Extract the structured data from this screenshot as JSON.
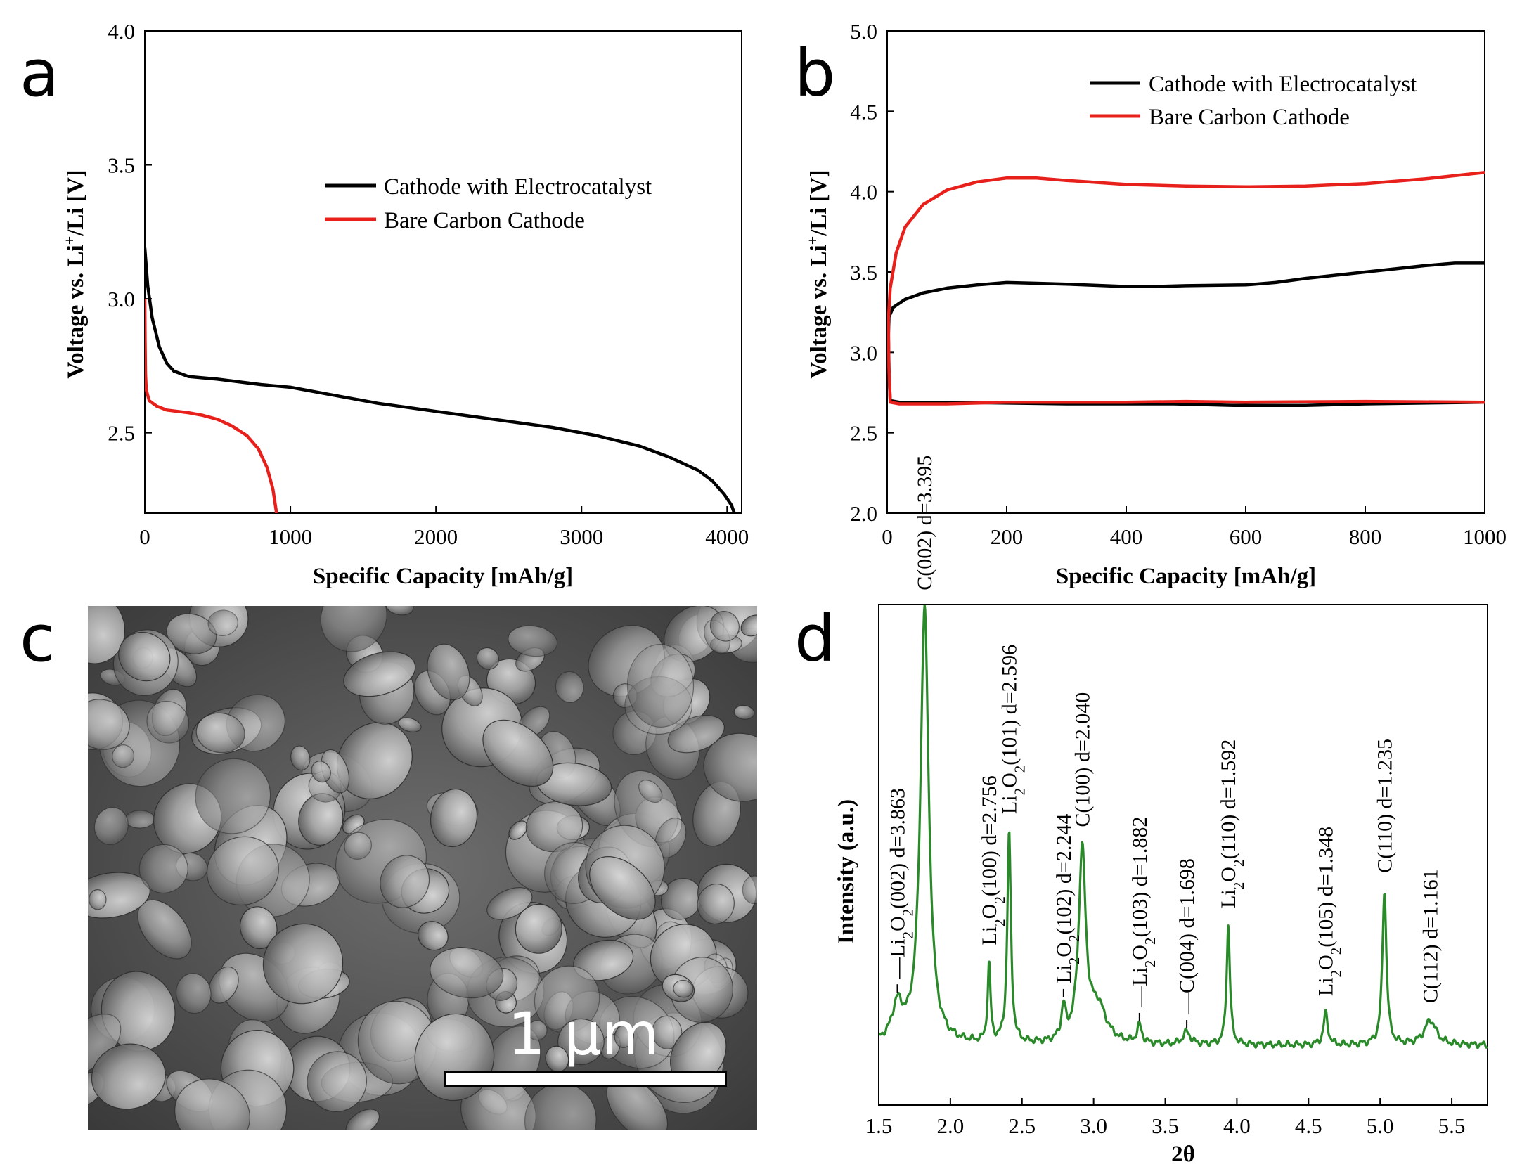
{
  "panels": {
    "a": {
      "letter": "a",
      "chart_data": {
        "type": "line",
        "xlabel": "Specific Capacity [mAh/g]",
        "ylabel_main": "Voltage vs. Li",
        "ylabel_sup": "+",
        "ylabel_rest": "/Li [V]",
        "xlim": [
          0,
          4100
        ],
        "ylim": [
          2.2,
          4.0
        ],
        "xticks": [
          0,
          1000,
          2000,
          3000,
          4000
        ],
        "yticks": [
          2.5,
          3.0,
          3.5,
          4.0
        ],
        "ytick_labels": [
          "2.5",
          "3.0",
          "3.5",
          "4.0"
        ],
        "legend_position": "center-right",
        "series": [
          {
            "name": "Cathode with Electrocatalyst",
            "color": "#000000",
            "points": [
              [
                0,
                3.19
              ],
              [
                20,
                3.05
              ],
              [
                50,
                2.93
              ],
              [
                100,
                2.82
              ],
              [
                150,
                2.76
              ],
              [
                200,
                2.73
              ],
              [
                300,
                2.71
              ],
              [
                500,
                2.7
              ],
              [
                800,
                2.68
              ],
              [
                1000,
                2.67
              ],
              [
                1300,
                2.64
              ],
              [
                1600,
                2.61
              ],
              [
                2000,
                2.58
              ],
              [
                2400,
                2.55
              ],
              [
                2800,
                2.52
              ],
              [
                3100,
                2.49
              ],
              [
                3400,
                2.45
              ],
              [
                3600,
                2.41
              ],
              [
                3800,
                2.36
              ],
              [
                3900,
                2.32
              ],
              [
                3980,
                2.27
              ],
              [
                4030,
                2.23
              ],
              [
                4050,
                2.2
              ]
            ]
          },
          {
            "name": "Bare Carbon Cathode",
            "color": "#e8201c",
            "points": [
              [
                0,
                3.0
              ],
              [
                2,
                2.85
              ],
              [
                5,
                2.72
              ],
              [
                10,
                2.66
              ],
              [
                30,
                2.62
              ],
              [
                80,
                2.6
              ],
              [
                150,
                2.585
              ],
              [
                300,
                2.575
              ],
              [
                400,
                2.565
              ],
              [
                500,
                2.55
              ],
              [
                600,
                2.525
              ],
              [
                700,
                2.49
              ],
              [
                780,
                2.44
              ],
              [
                840,
                2.37
              ],
              [
                880,
                2.29
              ],
              [
                905,
                2.2
              ]
            ]
          }
        ]
      }
    },
    "b": {
      "letter": "b",
      "chart_data": {
        "type": "line",
        "xlabel": "Specific Capacity [mAh/g]",
        "ylabel_main": "Voltage vs. Li",
        "ylabel_sup": "+",
        "ylabel_rest": "/Li [V]",
        "xlim": [
          0,
          1000
        ],
        "ylim": [
          2.0,
          5.0
        ],
        "xticks": [
          0,
          200,
          400,
          600,
          800,
          1000
        ],
        "yticks": [
          2.0,
          2.5,
          3.0,
          3.5,
          4.0,
          4.5,
          5.0
        ],
        "ytick_labels": [
          "2.0",
          "2.5",
          "3.0",
          "3.5",
          "4.0",
          "4.5",
          "5.0"
        ],
        "legend_position": "top-right",
        "series": [
          {
            "name": "Cathode with Electrocatalyst",
            "color": "#000000",
            "points": [
              [
                1000,
                2.69
              ],
              [
                800,
                2.68
              ],
              [
                700,
                2.67
              ],
              [
                580,
                2.67
              ],
              [
                480,
                2.68
              ],
              [
                300,
                2.68
              ],
              [
                100,
                2.69
              ],
              [
                20,
                2.69
              ],
              [
                5,
                2.7
              ],
              [
                3,
                2.9
              ],
              [
                2,
                3.1
              ],
              [
                3,
                3.22
              ],
              [
                10,
                3.28
              ],
              [
                30,
                3.33
              ],
              [
                60,
                3.37
              ],
              [
                100,
                3.4
              ],
              [
                150,
                3.42
              ],
              [
                200,
                3.435
              ],
              [
                250,
                3.43
              ],
              [
                300,
                3.425
              ],
              [
                400,
                3.41
              ],
              [
                450,
                3.41
              ],
              [
                500,
                3.415
              ],
              [
                600,
                3.42
              ],
              [
                650,
                3.435
              ],
              [
                700,
                3.46
              ],
              [
                800,
                3.5
              ],
              [
                900,
                3.54
              ],
              [
                950,
                3.555
              ],
              [
                1000,
                3.555
              ]
            ]
          },
          {
            "name": "Bare Carbon Cathode",
            "color": "#e8201c",
            "points": [
              [
                1000,
                2.69
              ],
              [
                800,
                2.695
              ],
              [
                600,
                2.69
              ],
              [
                500,
                2.695
              ],
              [
                400,
                2.69
              ],
              [
                200,
                2.69
              ],
              [
                100,
                2.68
              ],
              [
                20,
                2.68
              ],
              [
                5,
                2.69
              ],
              [
                3,
                2.9
              ],
              [
                2,
                3.2
              ],
              [
                5,
                3.4
              ],
              [
                15,
                3.62
              ],
              [
                30,
                3.78
              ],
              [
                60,
                3.92
              ],
              [
                100,
                4.01
              ],
              [
                150,
                4.06
              ],
              [
                200,
                4.085
              ],
              [
                250,
                4.085
              ],
              [
                300,
                4.07
              ],
              [
                400,
                4.045
              ],
              [
                500,
                4.035
              ],
              [
                600,
                4.03
              ],
              [
                700,
                4.035
              ],
              [
                800,
                4.05
              ],
              [
                900,
                4.08
              ],
              [
                1000,
                4.12
              ]
            ]
          }
        ]
      }
    },
    "c": {
      "letter": "c",
      "scale_label": "1 μm",
      "image": "SEM micrograph"
    },
    "d": {
      "letter": "d",
      "chart_data": {
        "type": "line",
        "xlabel": "2θ",
        "ylabel": "Intensity (a.u.)",
        "xlim": [
          1.5,
          5.75
        ],
        "xticks": [
          1.5,
          2.0,
          2.5,
          3.0,
          3.5,
          4.0,
          4.5,
          5.0,
          5.5
        ],
        "xtick_labels": [
          "1.5",
          "2.0",
          "2.5",
          "3.0",
          "3.5",
          "4.0",
          "4.5",
          "5.0",
          "5.5"
        ],
        "ylim": [
          0,
          1.0
        ],
        "y_ticks_shown": false,
        "series": [
          {
            "name": "",
            "color": "#2a8a2a",
            "baseline": 0.045,
            "peaks": [
              {
                "x": 1.63,
                "h": 0.05,
                "w": 0.045
              },
              {
                "x": 1.82,
                "h": 0.62,
                "w": 0.035
              },
              {
                "x": 2.27,
                "h": 0.11,
                "w": 0.012
              },
              {
                "x": 2.41,
                "h": 0.3,
                "w": 0.015
              },
              {
                "x": 2.79,
                "h": 0.045,
                "w": 0.018
              },
              {
                "x": 2.92,
                "h": 0.27,
                "w": 0.03
              },
              {
                "x": 3.03,
                "h": 0.05,
                "w": 0.07
              },
              {
                "x": 3.32,
                "h": 0.025,
                "w": 0.02
              },
              {
                "x": 3.65,
                "h": 0.018,
                "w": 0.03
              },
              {
                "x": 3.94,
                "h": 0.17,
                "w": 0.014
              },
              {
                "x": 4.62,
                "h": 0.045,
                "w": 0.018
              },
              {
                "x": 5.03,
                "h": 0.22,
                "w": 0.017
              },
              {
                "x": 5.35,
                "h": 0.035,
                "w": 0.05
              }
            ]
          }
        ],
        "peak_labels": [
          {
            "x": 1.63,
            "top": "—Li",
            "sub": "2",
            "mid": "O",
            "sub2": "2",
            "rest": "(002) d=3.863",
            "arrow": true
          },
          {
            "x": 1.82,
            "top": "C(002) d=3.395",
            "plain": true
          },
          {
            "x": 2.27,
            "top": "Li",
            "sub": "2",
            "mid": "O",
            "sub2": "2",
            "rest": "(100) d=2.756"
          },
          {
            "x": 2.41,
            "top": "Li",
            "sub": "2",
            "mid": "O",
            "sub2": "2",
            "rest": "(101) d=2.596"
          },
          {
            "x": 2.79,
            "top": "Li",
            "sub": "2",
            "mid": "O",
            "sub2": "2",
            "rest": "(102) d=2.244",
            "arrow": true
          },
          {
            "x": 2.92,
            "top": "C(100) d=2.040",
            "plain": true
          },
          {
            "x": 3.32,
            "top": "—Li",
            "sub": "2",
            "mid": "O",
            "sub2": "2",
            "rest": "(103) d=1.882",
            "arrow": true
          },
          {
            "x": 3.65,
            "top": "—C(004) d=1.698",
            "plain": true,
            "arrow": true
          },
          {
            "x": 3.94,
            "top": "Li",
            "sub": "2",
            "mid": "O",
            "sub2": "2",
            "rest": "(110) d=1.592"
          },
          {
            "x": 4.62,
            "top": "Li",
            "sub": "2",
            "mid": "O",
            "sub2": "2",
            "rest": "(105) d=1.348"
          },
          {
            "x": 5.03,
            "top": "C(110) d=1.235",
            "plain": true
          },
          {
            "x": 5.35,
            "top": "C(112) d=1.161",
            "plain": true
          }
        ]
      }
    }
  }
}
